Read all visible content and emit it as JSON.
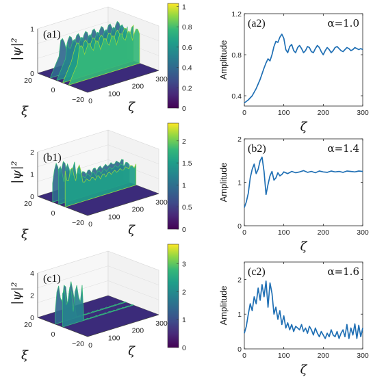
{
  "figure": {
    "surfaces": [
      {
        "panel": "(a1)",
        "zlabel": "|ψ|²",
        "xlabel": "ξ",
        "ylabel": "ζ",
        "z_ticks": [
          "1",
          "0"
        ],
        "xi_ticks": [
          "20",
          "0",
          "−20"
        ],
        "zeta_ticks": [
          "0",
          "100",
          "200",
          "300"
        ],
        "colorbar_ticks": [
          "0",
          "0.2",
          "0.4",
          "0.6",
          "0.8",
          "1"
        ],
        "colorbar_range": [
          0,
          1.03
        ]
      },
      {
        "panel": "(b1)",
        "zlabel": "|ψ|²",
        "xlabel": "ξ",
        "ylabel": "ζ",
        "z_ticks": [
          "2",
          "1",
          "0"
        ],
        "xi_ticks": [
          "20",
          "0",
          "−20"
        ],
        "zeta_ticks": [
          "0",
          "100",
          "200",
          "300"
        ],
        "colorbar_ticks": [
          "0",
          "0.5",
          "1",
          "1.5",
          "2"
        ],
        "colorbar_range": [
          0,
          2.4
        ]
      },
      {
        "panel": "(c1)",
        "zlabel": "|ψ|²",
        "xlabel": "ξ",
        "ylabel": "ζ",
        "z_ticks": [
          "4",
          "2",
          "0"
        ],
        "xi_ticks": [
          "20",
          "0",
          "−20"
        ],
        "zeta_ticks": [
          "0",
          "100",
          "200",
          "300"
        ],
        "colorbar_ticks": [
          "0",
          "1",
          "2",
          "3"
        ],
        "colorbar_range": [
          0,
          3.7
        ]
      }
    ]
  },
  "chart_data": [
    {
      "type": "line",
      "panel": "(a2)",
      "annotation": "α=1.0",
      "xlabel": "ζ",
      "ylabel": "Amplitude",
      "xlim": [
        0,
        300
      ],
      "ylim": [
        0.3,
        1.2
      ],
      "x_ticks": [
        0,
        100,
        200,
        300
      ],
      "y_ticks": [
        0.4,
        0.8,
        1.2
      ],
      "y_tick_labels": [
        "0.4",
        "0.8",
        "1.2"
      ],
      "series": [
        {
          "color": "#1f6fb4",
          "x": [
            0,
            10,
            20,
            30,
            40,
            50,
            55,
            60,
            65,
            70,
            75,
            80,
            85,
            90,
            95,
            100,
            105,
            110,
            115,
            120,
            125,
            130,
            135,
            140,
            145,
            150,
            155,
            160,
            165,
            170,
            175,
            180,
            185,
            190,
            195,
            200,
            205,
            210,
            215,
            220,
            225,
            230,
            235,
            240,
            245,
            250,
            255,
            260,
            265,
            270,
            275,
            280,
            285,
            290,
            295,
            300
          ],
          "y": [
            0.33,
            0.36,
            0.4,
            0.47,
            0.56,
            0.67,
            0.72,
            0.76,
            0.74,
            0.8,
            0.88,
            0.93,
            0.92,
            0.97,
            1.0,
            0.96,
            0.85,
            0.82,
            0.88,
            0.9,
            0.84,
            0.82,
            0.87,
            0.89,
            0.86,
            0.82,
            0.84,
            0.88,
            0.87,
            0.83,
            0.82,
            0.86,
            0.89,
            0.87,
            0.83,
            0.8,
            0.84,
            0.87,
            0.85,
            0.82,
            0.84,
            0.87,
            0.88,
            0.86,
            0.84,
            0.83,
            0.85,
            0.87,
            0.86,
            0.84,
            0.85,
            0.87,
            0.86,
            0.85,
            0.86,
            0.85
          ]
        }
      ]
    },
    {
      "type": "line",
      "panel": "(b2)",
      "annotation": "α=1.4",
      "xlabel": "ζ",
      "ylabel": "Amplitude",
      "xlim": [
        0,
        300
      ],
      "ylim": [
        0,
        2
      ],
      "x_ticks": [
        0,
        100,
        200,
        300
      ],
      "y_ticks": [
        0,
        1,
        2
      ],
      "y_tick_labels": [
        "0",
        "1",
        "2"
      ],
      "series": [
        {
          "color": "#1f6fb4",
          "x": [
            0,
            5,
            10,
            15,
            20,
            25,
            30,
            35,
            40,
            45,
            50,
            55,
            60,
            65,
            70,
            75,
            80,
            85,
            90,
            95,
            100,
            110,
            120,
            130,
            140,
            150,
            160,
            170,
            180,
            190,
            200,
            210,
            220,
            230,
            240,
            250,
            260,
            270,
            280,
            290,
            300
          ],
          "y": [
            0.42,
            0.55,
            0.75,
            1.1,
            1.3,
            1.42,
            1.2,
            1.3,
            1.5,
            1.58,
            1.25,
            0.72,
            0.95,
            1.15,
            1.25,
            1.05,
            1.1,
            1.22,
            1.15,
            1.18,
            1.24,
            1.2,
            1.25,
            1.22,
            1.24,
            1.27,
            1.23,
            1.25,
            1.22,
            1.26,
            1.24,
            1.23,
            1.26,
            1.24,
            1.25,
            1.23,
            1.26,
            1.25,
            1.24,
            1.26,
            1.25
          ]
        }
      ]
    },
    {
      "type": "line",
      "panel": "(c2)",
      "annotation": "α=1.6",
      "xlabel": "ζ",
      "ylabel": "Amplitude",
      "xlim": [
        0,
        300
      ],
      "ylim": [
        0,
        2.5
      ],
      "x_ticks": [
        0,
        100,
        200,
        300
      ],
      "y_ticks": [
        0,
        1,
        2
      ],
      "y_tick_labels": [
        "0",
        "1",
        "2"
      ],
      "series": [
        {
          "color": "#1f6fb4",
          "x": [
            0,
            5,
            10,
            15,
            20,
            25,
            30,
            35,
            40,
            45,
            50,
            55,
            60,
            65,
            70,
            75,
            80,
            85,
            90,
            95,
            100,
            105,
            110,
            115,
            120,
            125,
            130,
            135,
            140,
            145,
            150,
            155,
            160,
            165,
            170,
            175,
            180,
            185,
            190,
            195,
            200,
            205,
            210,
            215,
            220,
            225,
            230,
            235,
            240,
            245,
            250,
            255,
            260,
            265,
            270,
            275,
            280,
            285,
            290,
            295,
            300
          ],
          "y": [
            0.45,
            0.65,
            1.0,
            1.3,
            1.1,
            1.5,
            1.3,
            1.75,
            1.4,
            1.85,
            1.5,
            1.95,
            1.2,
            1.9,
            1.6,
            1.0,
            1.2,
            0.85,
            1.1,
            0.7,
            0.95,
            0.6,
            0.75,
            0.55,
            0.7,
            0.5,
            0.65,
            0.6,
            0.55,
            0.7,
            0.5,
            0.6,
            0.45,
            0.65,
            0.55,
            0.4,
            0.6,
            0.45,
            0.35,
            0.5,
            0.4,
            0.3,
            0.45,
            0.35,
            0.55,
            0.4,
            0.35,
            0.5,
            0.3,
            0.45,
            0.55,
            0.35,
            0.7,
            0.3,
            0.6,
            0.4,
            0.72,
            0.3,
            0.68,
            0.35,
            0.6
          ]
        }
      ]
    }
  ]
}
